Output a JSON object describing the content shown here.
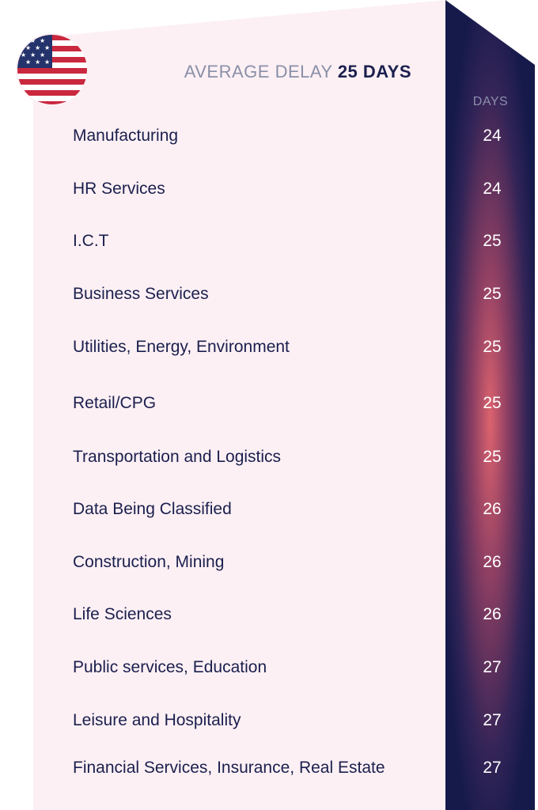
{
  "header": {
    "prefix": "AVERAGE DELAY",
    "highlight": "25 DAYS"
  },
  "column_header": "DAYS",
  "flag_icon": "us-flag-icon",
  "colors": {
    "panel": "#fcf0f4",
    "text": "#1b1f4e",
    "column_top": "#151a4b",
    "column_mid": "#d8606c"
  },
  "chart_data": {
    "type": "table",
    "title": "AVERAGE DELAY 25 DAYS",
    "columns": [
      "",
      "DAYS"
    ],
    "categories": [
      "Manufacturing",
      "HR Services",
      "I.C.T",
      "Business Services",
      "Utilities, Energy, Environment",
      "Retail/CPG",
      "Transportation and Logistics",
      "Data Being Classified",
      "Construction, Mining",
      "Life Sciences",
      "Public services, Education",
      "Leisure and Hospitality",
      "Financial Services, Insurance, Real Estate"
    ],
    "values": [
      24,
      24,
      25,
      25,
      25,
      25,
      25,
      26,
      26,
      26,
      27,
      27,
      27
    ]
  }
}
